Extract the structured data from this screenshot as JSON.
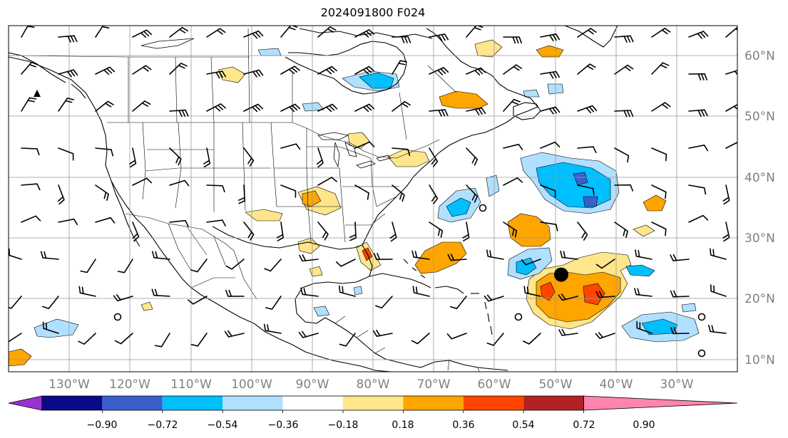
{
  "title": "2024091800 F024",
  "map": {
    "lat_labels": [
      "60°N",
      "50°N",
      "40°N",
      "30°N",
      "20°N",
      "10°N"
    ],
    "lat_values": [
      60,
      50,
      40,
      30,
      20,
      10
    ],
    "lon_labels": [
      "130°W",
      "120°W",
      "110°W",
      "100°W",
      "90°W",
      "80°W",
      "70°W",
      "60°W",
      "50°W",
      "40°W",
      "30°W"
    ],
    "lon_values": [
      -130,
      -120,
      -110,
      -100,
      -90,
      -80,
      -70,
      -60,
      -50,
      -40,
      -30
    ],
    "extent": {
      "lon_min": -138,
      "lon_max": -18,
      "lat_min": 8,
      "lat_max": 65
    },
    "storm_marker": {
      "lon": -47,
      "lat": 24
    }
  },
  "colorbar": {
    "ticks": [
      "−0.90",
      "−0.72",
      "−0.54",
      "−0.36",
      "−0.18",
      "0.18",
      "0.36",
      "0.54",
      "0.72",
      "0.90"
    ],
    "colors": [
      "#9b30d0",
      "#0a0a8a",
      "#3a5fcd",
      "#00bfff",
      "#b0e0ff",
      "#ffffff",
      "#ffe68a",
      "#ffa500",
      "#ff4500",
      "#b22222",
      "#ff85b0"
    ]
  },
  "colors": {
    "pos_light": "#ffe68a",
    "pos_mid": "#ffa500",
    "pos_high": "#ff4500",
    "neg_light": "#b0e0ff",
    "neg_mid": "#00bfff",
    "neg_high": "#3a5fcd",
    "grid": "#999999",
    "land_outline": "#000000"
  }
}
